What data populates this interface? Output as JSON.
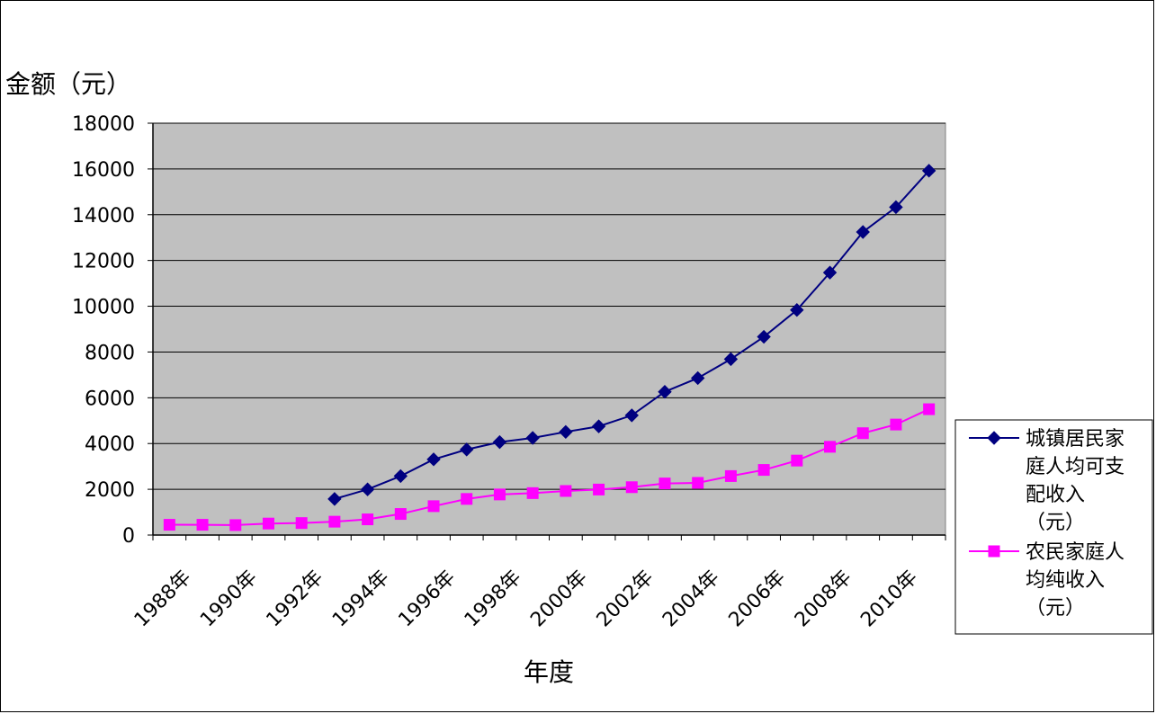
{
  "chart_data": {
    "type": "line",
    "xlabel": "年度",
    "ylabel": "金额（元）",
    "ylim": [
      0,
      18000
    ],
    "yticks": [
      0,
      2000,
      4000,
      6000,
      8000,
      10000,
      12000,
      14000,
      16000,
      18000
    ],
    "x": [
      1988,
      1989,
      1990,
      1991,
      1992,
      1993,
      1994,
      1995,
      1996,
      1997,
      1998,
      1999,
      2000,
      2001,
      2002,
      2003,
      2004,
      2005,
      2006,
      2007,
      2008,
      2009,
      2010,
      2011
    ],
    "xtick_labels": [
      "1988年",
      "1990年",
      "1992年",
      "1994年",
      "1996年",
      "1998年",
      "2000年",
      "2002年",
      "2004年",
      "2006年",
      "2008年",
      "2010年"
    ],
    "grid": "horizontal",
    "plot_background": "#c0c0c0",
    "legend_position": "right",
    "series": [
      {
        "name": "城镇居民家庭人均可支配收入（元）",
        "legend_lines": [
          "城镇居民家",
          "庭人均可支",
          "配收入",
          "（元）"
        ],
        "color": "#000080",
        "marker": "diamond",
        "values": [
          null,
          null,
          null,
          null,
          null,
          1577,
          1996,
          2577,
          3307,
          3739,
          4063,
          4245,
          4507,
          4751,
          5231,
          6261,
          6860,
          7688,
          8664,
          9836,
          11470,
          13245,
          14330,
          15924
        ]
      },
      {
        "name": "农民家庭人均纯收入（元）",
        "legend_lines": [
          "农民家庭人",
          "均纯收入",
          "（元）"
        ],
        "color": "#ff00ff",
        "marker": "square",
        "values": [
          450,
          449,
          435,
          503,
          524,
          584,
          686,
          922,
          1262,
          1578,
          1774,
          1833,
          1926,
          1989,
          2092,
          2255,
          2281,
          2578,
          2846,
          3255,
          3857,
          4452,
          4830,
          5500
        ]
      }
    ]
  }
}
